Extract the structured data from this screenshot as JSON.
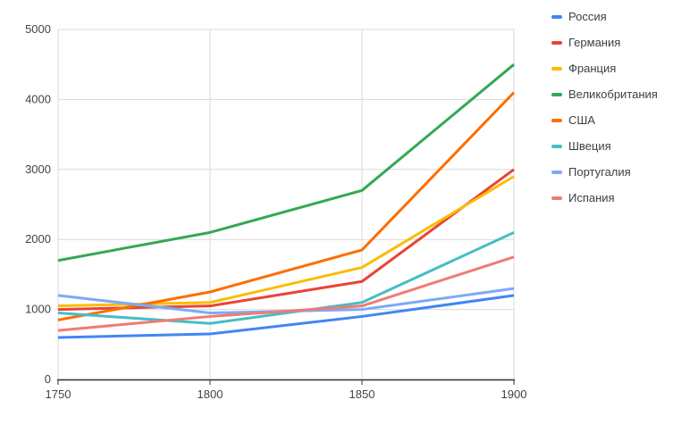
{
  "chart_data": {
    "type": "line",
    "title": "",
    "xlabel": "",
    "ylabel": "",
    "x": [
      1750,
      1800,
      1850,
      1900
    ],
    "xticks": [
      "1750",
      "1800",
      "1850",
      "1900"
    ],
    "yticks": [
      "0",
      "1000",
      "2000",
      "3000",
      "4000",
      "5000"
    ],
    "ytick_values": [
      0,
      1000,
      2000,
      3000,
      4000,
      5000
    ],
    "xlim": [
      1750,
      1900
    ],
    "ylim": [
      0,
      5000
    ],
    "grid": true,
    "legend_position": "right",
    "series": [
      {
        "name": "Россия",
        "color": "#4285F4",
        "values": [
          600,
          650,
          900,
          1200
        ]
      },
      {
        "name": "Германия",
        "color": "#EA4335",
        "values": [
          1000,
          1050,
          1400,
          3000
        ]
      },
      {
        "name": "Франция",
        "color": "#FBBC04",
        "values": [
          1050,
          1100,
          1600,
          2900
        ]
      },
      {
        "name": "Великобритания",
        "color": "#34A853",
        "values": [
          1700,
          2100,
          2700,
          4500
        ]
      },
      {
        "name": "США",
        "color": "#FF6D01",
        "values": [
          850,
          1250,
          1850,
          4100
        ]
      },
      {
        "name": "Швеция",
        "color": "#46BDC6",
        "values": [
          950,
          800,
          1100,
          2100
        ]
      },
      {
        "name": "Португалия",
        "color": "#7BAAF7",
        "values": [
          1200,
          950,
          1000,
          1300
        ]
      },
      {
        "name": "Испания",
        "color": "#F07B72",
        "values": [
          700,
          900,
          1050,
          1750
        ]
      }
    ]
  },
  "colors": {
    "background": "#ffffff",
    "gridline": "#d9d9d9",
    "axis_line": "#333333",
    "axis_label": "#424242",
    "legend_label": "#3c4043"
  }
}
